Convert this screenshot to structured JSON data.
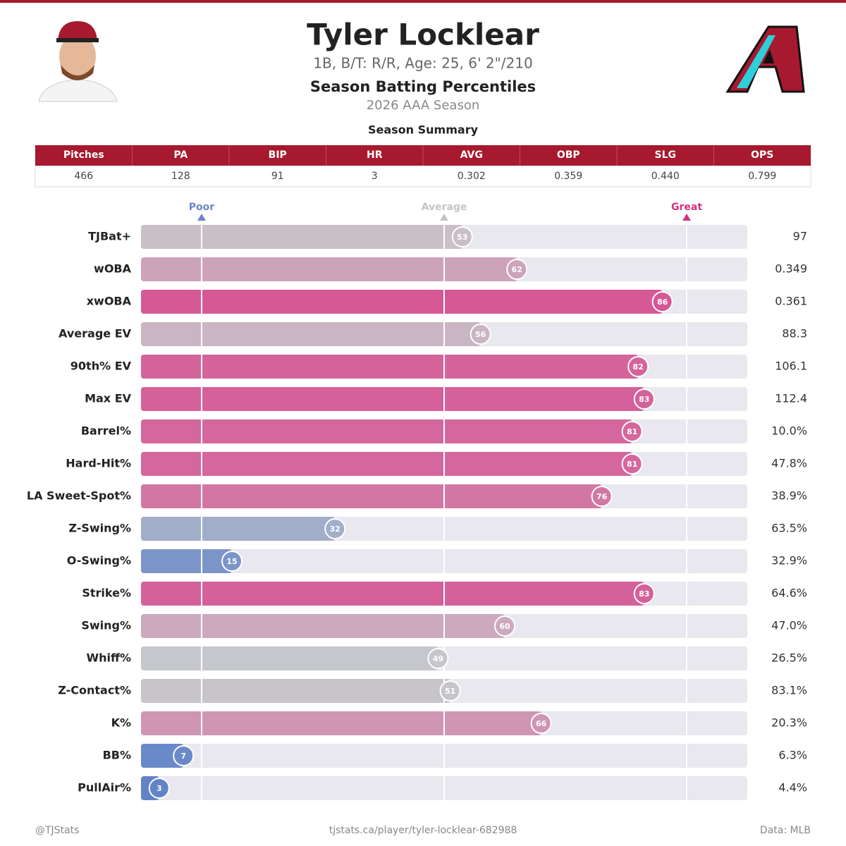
{
  "header": {
    "title": "Tyler Locklear",
    "subtitle": "1B, B/T: R/R, Age: 25, 6' 2\"/210",
    "heading": "Season Batting Percentiles",
    "season": "2026 AAA Season"
  },
  "summary": {
    "title": "Season Summary",
    "columns": [
      "Pitches",
      "PA",
      "BIP",
      "HR",
      "AVG",
      "OBP",
      "SLG",
      "OPS"
    ],
    "values": [
      "466",
      "128",
      "91",
      "3",
      "0.302",
      "0.359",
      "0.440",
      "0.799"
    ]
  },
  "chart_data": {
    "type": "percentile-bar",
    "categories": [
      "TJBat+",
      "wOBA",
      "xwOBA",
      "Average EV",
      "90th% EV",
      "Max EV",
      "Barrel%",
      "Hard-Hit%",
      "LA Sweet-Spot%",
      "Z-Swing%",
      "O-Swing%",
      "Strike%",
      "Swing%",
      "Whiff%",
      "Z-Contact%",
      "K%",
      "BB%",
      "PullAir%"
    ],
    "values": [
      53,
      62,
      86,
      56,
      82,
      83,
      81,
      81,
      76,
      32,
      15,
      83,
      60,
      49,
      51,
      66,
      7,
      3
    ],
    "stat_values": [
      "97",
      "0.349",
      "0.361",
      "88.3",
      "106.1",
      "112.4",
      "10.0%",
      "47.8%",
      "38.9%",
      "63.5%",
      "32.9%",
      "64.6%",
      "47.0%",
      "26.5%",
      "83.1%",
      "20.3%",
      "6.3%",
      "4.4%"
    ],
    "xlim": [
      0,
      100
    ],
    "xticks": [
      {
        "value": 10,
        "label": "Poor"
      },
      {
        "value": 50,
        "label": "Average"
      },
      {
        "value": 90,
        "label": "Great"
      }
    ],
    "tick_colors": [
      "#6a86c4",
      "#c4c4c8",
      "#d6307e"
    ],
    "colormap": [
      "#5b7fc7",
      "#c8c8cc",
      "#dc2c80"
    ]
  },
  "footer": {
    "left": "@TJStats",
    "center": "tjstats.ca/player/tyler-locklear-682988",
    "right": "Data: MLB"
  }
}
